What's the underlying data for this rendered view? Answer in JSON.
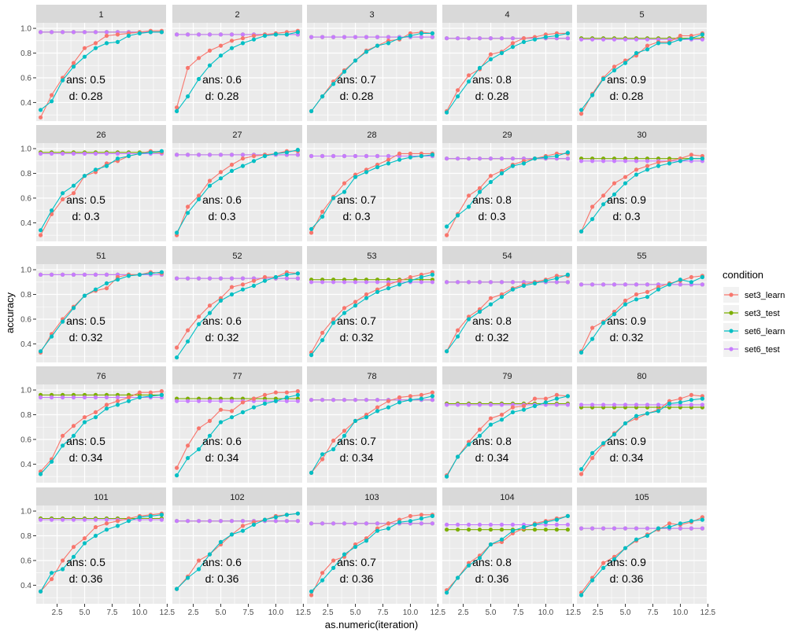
{
  "chart_data": {
    "type": "line",
    "xlabel": "as.numeric(iteration)",
    "ylabel": "accuracy",
    "xlim": [
      0.6,
      12.4
    ],
    "ylim": [
      0.25,
      1.045
    ],
    "x_ticks": [
      2.5,
      5.0,
      7.5,
      10.0,
      12.5
    ],
    "x_tick_labels": [
      "2.5",
      "5.0",
      "7.5",
      "10.0",
      "12.5"
    ],
    "y_ticks": [
      0.4,
      0.6,
      0.8,
      1.0
    ],
    "y_tick_labels": [
      "0.4",
      "0.6",
      "0.8",
      "1.0"
    ],
    "x": [
      1,
      2,
      3,
      4,
      5,
      6,
      7,
      8,
      9,
      10,
      11,
      12
    ],
    "legend": {
      "title": "condition",
      "position": "right",
      "entries": [
        {
          "name": "set3_learn",
          "color": "#F8766D"
        },
        {
          "name": "set3_test",
          "color": "#7CAE00"
        },
        {
          "name": "set6_learn",
          "color": "#00BFC4"
        },
        {
          "name": "set6_test",
          "color": "#C77CFF"
        }
      ]
    },
    "grid": true,
    "facet_rows": [
      {
        "d_label": "d: 0.28",
        "panels": [
          {
            "label": "1",
            "ans_label": "ans: 0.5",
            "set3_test": 0.97,
            "set6_test": 0.97,
            "set3_learn": [
              0.28,
              0.46,
              0.6,
              0.72,
              0.84,
              0.88,
              0.94,
              0.95,
              0.96,
              0.97,
              0.98,
              0.98
            ],
            "set6_learn": [
              0.34,
              0.41,
              0.58,
              0.69,
              0.77,
              0.84,
              0.88,
              0.89,
              0.94,
              0.96,
              0.97,
              0.97
            ]
          },
          {
            "label": "2",
            "ans_label": "ans: 0.6",
            "set3_test": 0.95,
            "set6_test": 0.95,
            "set3_learn": [
              0.36,
              0.68,
              0.76,
              0.82,
              0.86,
              0.9,
              0.92,
              0.94,
              0.95,
              0.96,
              0.97,
              0.98
            ],
            "set6_learn": [
              0.33,
              0.45,
              0.59,
              0.7,
              0.78,
              0.84,
              0.88,
              0.91,
              0.94,
              0.95,
              0.95,
              0.97
            ]
          },
          {
            "label": "3",
            "ans_label": "ans: 0.7",
            "set3_test": 0.93,
            "set6_test": 0.93,
            "set3_learn": [
              0.33,
              0.45,
              0.57,
              0.66,
              0.74,
              0.82,
              0.86,
              0.9,
              0.91,
              0.96,
              0.97,
              0.96
            ],
            "set6_learn": [
              0.33,
              0.45,
              0.55,
              0.65,
              0.74,
              0.81,
              0.86,
              0.88,
              0.92,
              0.94,
              0.96,
              0.96
            ]
          },
          {
            "label": "4",
            "ans_label": "ans: 0.8",
            "set3_test": 0.92,
            "set6_test": 0.92,
            "set3_learn": [
              0.33,
              0.5,
              0.62,
              0.67,
              0.79,
              0.81,
              0.88,
              0.92,
              0.93,
              0.95,
              0.96,
              0.96
            ],
            "set6_learn": [
              0.32,
              0.45,
              0.57,
              0.68,
              0.75,
              0.8,
              0.85,
              0.89,
              0.91,
              0.93,
              0.94,
              0.96
            ]
          },
          {
            "label": "5",
            "ans_label": "ans: 0.9",
            "set3_test": 0.92,
            "set6_test": 0.91,
            "set3_learn": [
              0.31,
              0.47,
              0.6,
              0.69,
              0.74,
              0.78,
              0.86,
              0.89,
              0.89,
              0.94,
              0.94,
              0.96
            ],
            "set6_learn": [
              0.34,
              0.46,
              0.59,
              0.66,
              0.72,
              0.8,
              0.83,
              0.88,
              0.88,
              0.91,
              0.92,
              0.95
            ]
          }
        ]
      },
      {
        "d_label": "d: 0.3",
        "panels": [
          {
            "label": "26",
            "ans_label": "ans: 0.5",
            "set3_test": 0.97,
            "set6_test": 0.96,
            "set3_learn": [
              0.3,
              0.47,
              0.59,
              0.64,
              0.78,
              0.81,
              0.88,
              0.9,
              0.94,
              0.96,
              0.98,
              0.97
            ],
            "set6_learn": [
              0.34,
              0.5,
              0.64,
              0.7,
              0.78,
              0.83,
              0.86,
              0.92,
              0.94,
              0.96,
              0.97,
              0.98
            ]
          },
          {
            "label": "27",
            "ans_label": "ans: 0.6",
            "set3_test": 0.95,
            "set6_test": 0.95,
            "set3_learn": [
              0.3,
              0.53,
              0.62,
              0.74,
              0.81,
              0.87,
              0.92,
              0.94,
              0.95,
              0.96,
              0.98,
              0.98
            ],
            "set6_learn": [
              0.32,
              0.48,
              0.59,
              0.7,
              0.76,
              0.82,
              0.86,
              0.9,
              0.94,
              0.96,
              0.97,
              0.99
            ]
          },
          {
            "label": "28",
            "ans_label": "ans: 0.7",
            "set3_test": 0.94,
            "set6_test": 0.94,
            "set3_learn": [
              0.32,
              0.49,
              0.61,
              0.72,
              0.79,
              0.83,
              0.87,
              0.91,
              0.96,
              0.96,
              0.96,
              0.96
            ],
            "set6_learn": [
              0.35,
              0.45,
              0.6,
              0.65,
              0.77,
              0.81,
              0.85,
              0.88,
              0.91,
              0.93,
              0.94,
              0.95
            ]
          },
          {
            "label": "29",
            "ans_label": "ans: 0.8",
            "set3_test": 0.92,
            "set6_test": 0.92,
            "set3_learn": [
              0.3,
              0.47,
              0.62,
              0.68,
              0.78,
              0.82,
              0.87,
              0.9,
              0.92,
              0.94,
              0.96,
              0.96
            ],
            "set6_learn": [
              0.37,
              0.46,
              0.53,
              0.65,
              0.73,
              0.8,
              0.86,
              0.88,
              0.92,
              0.93,
              0.94,
              0.97
            ]
          },
          {
            "label": "30",
            "ans_label": "ans: 0.9",
            "set3_test": 0.92,
            "set6_test": 0.9,
            "set3_learn": [
              0.33,
              0.53,
              0.62,
              0.72,
              0.77,
              0.83,
              0.86,
              0.89,
              0.9,
              0.92,
              0.95,
              0.94
            ],
            "set6_learn": [
              0.33,
              0.43,
              0.55,
              0.63,
              0.72,
              0.79,
              0.83,
              0.86,
              0.88,
              0.9,
              0.92,
              0.92
            ]
          }
        ]
      },
      {
        "d_label": "d: 0.32",
        "panels": [
          {
            "label": "51",
            "ans_label": "ans: 0.5",
            "set3_test": 0.96,
            "set6_test": 0.96,
            "set3_learn": [
              0.33,
              0.48,
              0.6,
              0.7,
              0.79,
              0.83,
              0.85,
              0.94,
              0.96,
              0.96,
              0.98,
              0.97
            ],
            "set6_learn": [
              0.34,
              0.46,
              0.58,
              0.69,
              0.79,
              0.84,
              0.89,
              0.92,
              0.95,
              0.96,
              0.97,
              0.98
            ]
          },
          {
            "label": "52",
            "ans_label": "ans: 0.6",
            "set3_test": 0.93,
            "set6_test": 0.93,
            "set3_learn": [
              0.37,
              0.51,
              0.62,
              0.71,
              0.77,
              0.86,
              0.88,
              0.91,
              0.94,
              0.94,
              0.98,
              0.97
            ],
            "set6_learn": [
              0.29,
              0.42,
              0.56,
              0.65,
              0.75,
              0.8,
              0.84,
              0.87,
              0.91,
              0.94,
              0.96,
              0.97
            ]
          },
          {
            "label": "53",
            "ans_label": "ans: 0.7",
            "set3_test": 0.92,
            "set6_test": 0.9,
            "set3_learn": [
              0.33,
              0.49,
              0.6,
              0.69,
              0.74,
              0.8,
              0.84,
              0.88,
              0.91,
              0.94,
              0.96,
              0.98
            ],
            "set6_learn": [
              0.31,
              0.43,
              0.57,
              0.65,
              0.71,
              0.77,
              0.82,
              0.85,
              0.88,
              0.91,
              0.94,
              0.96
            ]
          },
          {
            "label": "54",
            "ans_label": "ans: 0.8",
            "set3_test": 0.9,
            "set6_test": 0.9,
            "set3_learn": [
              0.34,
              0.51,
              0.62,
              0.68,
              0.77,
              0.8,
              0.85,
              0.88,
              0.9,
              0.92,
              0.95,
              0.95
            ],
            "set6_learn": [
              0.34,
              0.46,
              0.6,
              0.66,
              0.72,
              0.78,
              0.84,
              0.87,
              0.89,
              0.91,
              0.93,
              0.96
            ]
          },
          {
            "label": "55",
            "ans_label": "ans: 0.9",
            "set3_test": 0.88,
            "set6_test": 0.88,
            "set3_learn": [
              0.34,
              0.53,
              0.58,
              0.66,
              0.75,
              0.8,
              0.82,
              0.86,
              0.89,
              0.91,
              0.94,
              0.95
            ],
            "set6_learn": [
              0.33,
              0.44,
              0.57,
              0.64,
              0.72,
              0.76,
              0.78,
              0.84,
              0.88,
              0.92,
              0.9,
              0.94
            ]
          }
        ]
      },
      {
        "d_label": "d: 0.34",
        "panels": [
          {
            "label": "76",
            "ans_label": "ans: 0.5",
            "set3_test": 0.96,
            "set6_test": 0.94,
            "set3_learn": [
              0.34,
              0.44,
              0.63,
              0.71,
              0.78,
              0.82,
              0.88,
              0.91,
              0.94,
              0.98,
              0.98,
              0.99
            ],
            "set6_learn": [
              0.32,
              0.42,
              0.55,
              0.63,
              0.74,
              0.78,
              0.85,
              0.88,
              0.91,
              0.94,
              0.95,
              0.96
            ]
          },
          {
            "label": "77",
            "ans_label": "ans: 0.6",
            "set3_test": 0.93,
            "set6_test": 0.91,
            "set3_learn": [
              0.37,
              0.55,
              0.69,
              0.75,
              0.84,
              0.83,
              0.9,
              0.93,
              0.96,
              0.98,
              0.98,
              0.99
            ],
            "set6_learn": [
              0.31,
              0.45,
              0.52,
              0.63,
              0.74,
              0.78,
              0.82,
              0.86,
              0.89,
              0.91,
              0.94,
              0.96
            ]
          },
          {
            "label": "78",
            "ans_label": "ans: 0.7",
            "set3_test": 0.92,
            "set6_test": 0.92,
            "set3_learn": [
              0.33,
              0.44,
              0.59,
              0.67,
              0.75,
              0.8,
              0.86,
              0.91,
              0.94,
              0.95,
              0.96,
              0.98
            ],
            "set6_learn": [
              0.33,
              0.48,
              0.52,
              0.63,
              0.75,
              0.78,
              0.83,
              0.86,
              0.9,
              0.92,
              0.93,
              0.95
            ]
          },
          {
            "label": "79",
            "ans_label": "ans: 0.8",
            "set3_test": 0.89,
            "set6_test": 0.88,
            "set3_learn": [
              0.31,
              0.46,
              0.58,
              0.68,
              0.77,
              0.8,
              0.86,
              0.87,
              0.93,
              0.93,
              0.96,
              0.95
            ],
            "set6_learn": [
              0.3,
              0.46,
              0.56,
              0.63,
              0.72,
              0.76,
              0.82,
              0.84,
              0.87,
              0.9,
              0.93,
              0.95
            ]
          },
          {
            "label": "80",
            "ans_label": "ans: 0.9",
            "set3_test": 0.86,
            "set6_test": 0.88,
            "set3_learn": [
              0.32,
              0.45,
              0.56,
              0.65,
              0.73,
              0.77,
              0.81,
              0.84,
              0.91,
              0.93,
              0.96,
              0.95
            ],
            "set6_learn": [
              0.36,
              0.49,
              0.57,
              0.64,
              0.73,
              0.79,
              0.81,
              0.83,
              0.89,
              0.9,
              0.92,
              0.93
            ]
          }
        ]
      },
      {
        "d_label": "d: 0.36",
        "panels": [
          {
            "label": "101",
            "ans_label": "ans: 0.5",
            "set3_test": 0.94,
            "set6_test": 0.93,
            "set3_learn": [
              0.35,
              0.45,
              0.6,
              0.71,
              0.78,
              0.87,
              0.9,
              0.92,
              0.94,
              0.96,
              0.97,
              0.98
            ],
            "set6_learn": [
              0.35,
              0.5,
              0.53,
              0.63,
              0.74,
              0.8,
              0.85,
              0.88,
              0.92,
              0.95,
              0.96,
              0.97
            ]
          },
          {
            "label": "102",
            "ans_label": "ans: 0.6",
            "set3_test": 0.92,
            "set6_test": 0.92,
            "set3_learn": [
              0.37,
              0.47,
              0.6,
              0.65,
              0.73,
              0.81,
              0.88,
              0.91,
              0.93,
              0.96,
              0.97,
              0.98
            ],
            "set6_learn": [
              0.37,
              0.46,
              0.53,
              0.65,
              0.75,
              0.81,
              0.84,
              0.89,
              0.93,
              0.95,
              0.97,
              0.98
            ]
          },
          {
            "label": "103",
            "ans_label": "ans: 0.7",
            "set3_test": 0.9,
            "set6_test": 0.9,
            "set3_learn": [
              0.32,
              0.5,
              0.6,
              0.63,
              0.73,
              0.78,
              0.86,
              0.9,
              0.93,
              0.96,
              0.97,
              0.97
            ],
            "set6_learn": [
              0.35,
              0.44,
              0.54,
              0.65,
              0.71,
              0.76,
              0.84,
              0.86,
              0.91,
              0.92,
              0.94,
              0.96
            ]
          },
          {
            "label": "104",
            "ans_label": "ans: 0.8",
            "set3_test": 0.85,
            "set6_test": 0.89,
            "set3_learn": [
              0.36,
              0.46,
              0.58,
              0.64,
              0.73,
              0.75,
              0.82,
              0.86,
              0.9,
              0.92,
              0.94,
              0.96
            ],
            "set6_learn": [
              0.34,
              0.46,
              0.56,
              0.62,
              0.73,
              0.77,
              0.84,
              0.87,
              0.89,
              0.91,
              0.93,
              0.96
            ]
          },
          {
            "label": "105",
            "ans_label": "ans: 0.9",
            "set3_test": 0.86,
            "set6_test": 0.86,
            "set3_learn": [
              0.34,
              0.46,
              0.58,
              0.63,
              0.7,
              0.76,
              0.81,
              0.85,
              0.9,
              0.89,
              0.91,
              0.95
            ],
            "set6_learn": [
              0.32,
              0.44,
              0.54,
              0.61,
              0.7,
              0.77,
              0.8,
              0.86,
              0.87,
              0.9,
              0.92,
              0.93
            ]
          }
        ]
      }
    ]
  }
}
